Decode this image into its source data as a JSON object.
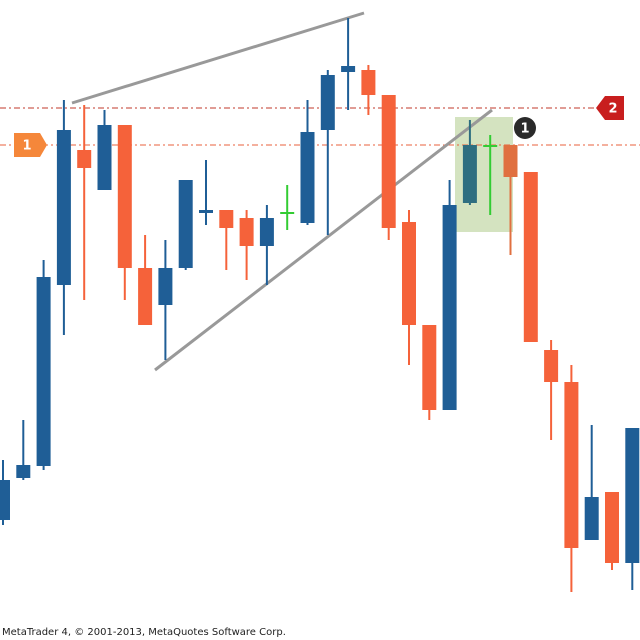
{
  "chart_data": {
    "type": "candlestick",
    "open": [
      120,
      162,
      174,
      355,
      490,
      450,
      515,
      372,
      335,
      372,
      427,
      430,
      422,
      394,
      428,
      417,
      510,
      568,
      570,
      545,
      418,
      315,
      230,
      437,
      495,
      495,
      468,
      290,
      258,
      100,
      148,
      77
    ],
    "high": [
      180,
      220,
      380,
      540,
      535,
      530,
      515,
      405,
      400,
      460,
      480,
      430,
      430,
      435,
      455,
      540,
      570,
      622,
      575,
      545,
      430,
      315,
      460,
      520,
      505,
      495,
      468,
      300,
      275,
      215,
      148,
      212
    ],
    "low": [
      115,
      160,
      170,
      305,
      340,
      450,
      340,
      315,
      280,
      370,
      415,
      370,
      360,
      355,
      410,
      415,
      405,
      530,
      525,
      400,
      275,
      220,
      230,
      435,
      425,
      385,
      298,
      200,
      48,
      100,
      70,
      50
    ],
    "close": [
      160,
      175,
      363,
      510,
      472,
      515,
      372,
      315,
      372,
      460,
      430,
      412,
      394,
      422,
      428,
      508,
      565,
      574,
      545,
      412,
      315,
      230,
      435,
      495,
      495,
      463,
      298,
      258,
      92,
      143,
      77,
      212
    ],
    "colors": [
      "#1f5e96",
      "#1f5e96",
      "#1f5e96",
      "#1f5e96",
      "#f5623a",
      "#1f5e96",
      "#f5623a",
      "#f5623a",
      "#1f5e96",
      "#1f5e96",
      "#1f5e96",
      "#f5623a",
      "#f5623a",
      "#1f5e96",
      "#33cc33",
      "#1f5e96",
      "#1f5e96",
      "#1f5e96",
      "#f5623a",
      "#f5623a",
      "#f5623a",
      "#f5623a",
      "#1f5e96",
      "#2e6e80",
      "#33cc33",
      "#e07040",
      "#f5623a",
      "#f5623a",
      "#f5623a",
      "#1f5e96",
      "#f5623a",
      "#1f5e96"
    ],
    "ylim": [
      0,
      640
    ],
    "markers": {
      "left": "1",
      "right": "2",
      "circle": "1"
    },
    "footer": "MetaTrader 4, © 2001-2013, MetaQuotes Software Corp."
  }
}
